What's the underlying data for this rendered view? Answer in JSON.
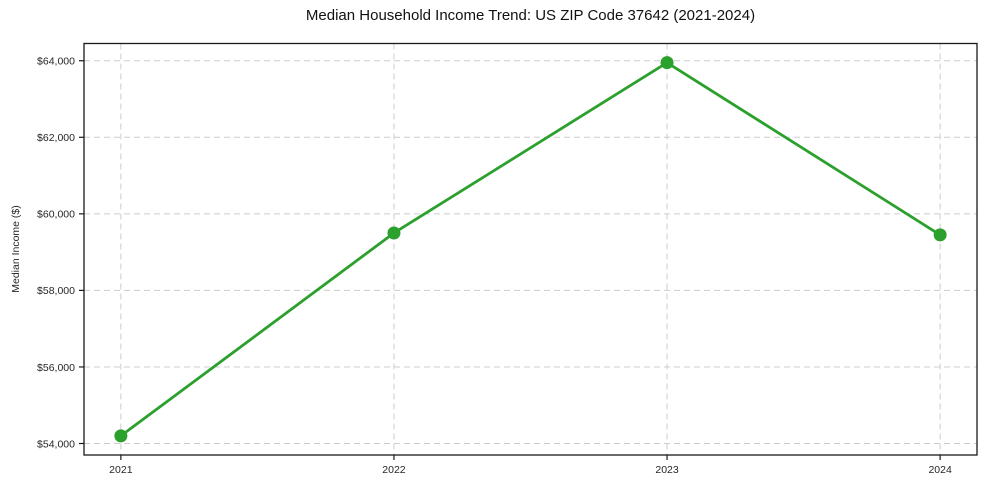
{
  "chart_data": {
    "type": "line",
    "title": "Median Household Income Trend: US ZIP Code 37642 (2021-2024)",
    "xlabel": "",
    "ylabel": "Median Income ($)",
    "x": [
      2021,
      2022,
      2023,
      2024
    ],
    "series": [
      {
        "name": "Median Household Income",
        "values": [
          54200,
          59500,
          63950,
          59450
        ]
      }
    ],
    "x_tick_labels": [
      "2021",
      "2022",
      "2023",
      "2024"
    ],
    "y_ticks": [
      54000,
      56000,
      58000,
      60000,
      62000,
      64000
    ],
    "y_tick_labels": [
      "$54,000",
      "$56,000",
      "$58,000",
      "$60,000",
      "$62,000",
      "$64,000"
    ],
    "xlim": [
      2020.865,
      2024.135
    ],
    "ylim": [
      53700,
      64450
    ],
    "grid": true,
    "grid_style": "dashed",
    "legend_position": "none",
    "colors": {
      "line": "#2ca02c",
      "marker": "#2ca02c",
      "grid": "#cccccc",
      "axis": "#1a1a1a",
      "tick_text": "#262626",
      "title_text": "#111111",
      "background": "#ffffff"
    },
    "style": {
      "line_width": 2.8,
      "marker_radius": 6.5,
      "tick_font_size": 10.5,
      "tick_length": 5
    }
  }
}
